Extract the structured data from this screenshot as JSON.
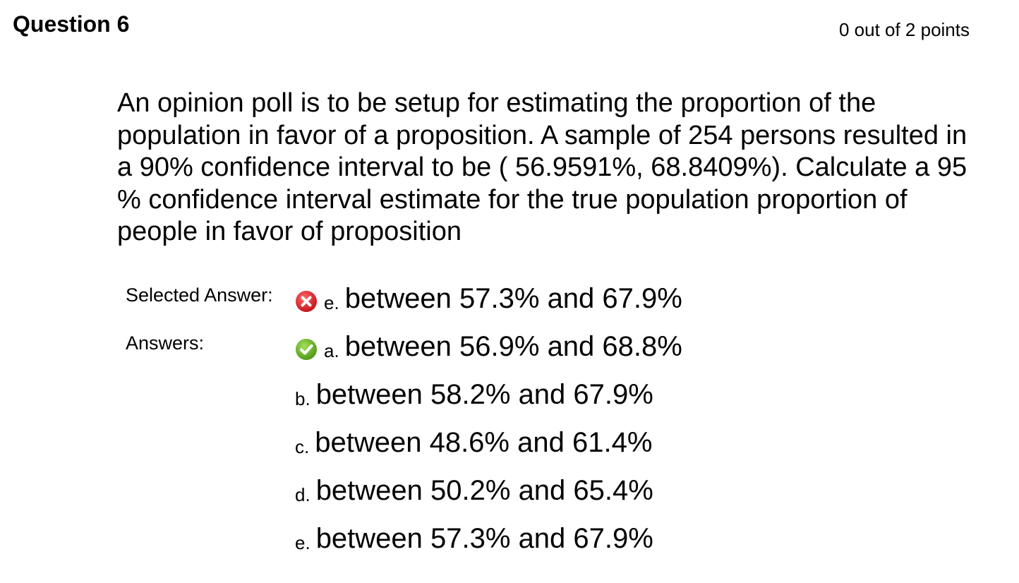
{
  "question": {
    "title": "Question 6",
    "points": "0 out of 2 points",
    "text": "An opinion poll is to be setup for estimating the proportion of the population in favor of a proposition. A sample of 254 persons resulted in a 90% confidence interval to be ( 56.9591%, 68.8409%). Calculate a 95 % confidence interval estimate for the true population proportion of people in favor of proposition"
  },
  "labels": {
    "selected": "Selected Answer:",
    "answers": "Answers:"
  },
  "selected_answer": {
    "letter": "e.",
    "text": "between 57.3% and 67.9%",
    "status_icon": "incorrect-icon",
    "status_color": "#e8262f"
  },
  "answers": [
    {
      "letter": "a.",
      "text": "between 56.9% and 68.8%",
      "status_icon": "correct-icon",
      "status_color": "#6fb324"
    },
    {
      "letter": "b.",
      "text": "between 58.2% and 67.9%"
    },
    {
      "letter": "c.",
      "text": "between 48.6% and 61.4%"
    },
    {
      "letter": "d.",
      "text": "between 50.2% and 65.4%"
    },
    {
      "letter": "e.",
      "text": "between 57.3% and 67.9%"
    }
  ]
}
